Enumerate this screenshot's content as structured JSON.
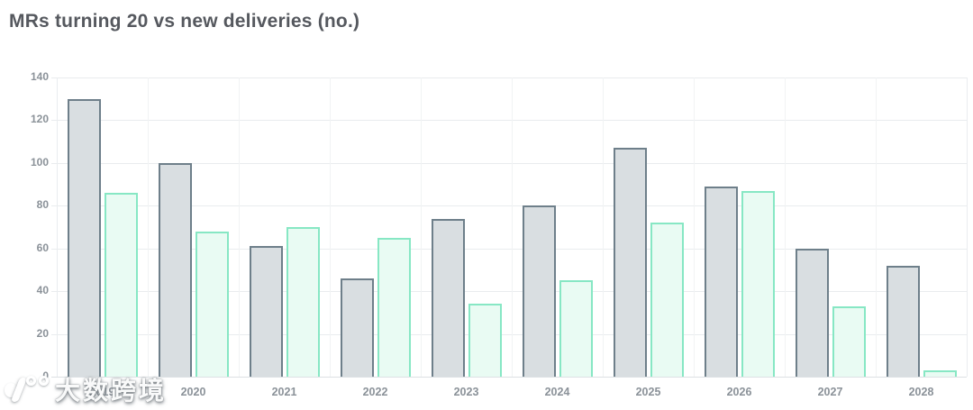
{
  "header": {
    "title": "MRs turning 20 vs new deliveries (no.)"
  },
  "chart_data": {
    "type": "bar",
    "title": "MRs turning 20 vs new deliveries (no.)",
    "categories": [
      "2019",
      "2020",
      "2021",
      "2022",
      "2023",
      "2024",
      "2025",
      "2026",
      "2027",
      "2028"
    ],
    "series": [
      {
        "name": "MRs turning 20",
        "fill": "#d9dee1",
        "border": "#6e7f8a",
        "values": [
          130,
          100,
          61,
          46,
          74,
          80,
          107,
          89,
          60,
          52
        ]
      },
      {
        "name": "New deliveries",
        "fill": "#e9fbf3",
        "border": "#87e7c4",
        "values": [
          86,
          68,
          70,
          65,
          34,
          45,
          72,
          87,
          33,
          3
        ]
      }
    ],
    "xlabel": "",
    "ylabel": "",
    "ylim": [
      0,
      140
    ],
    "yticks": [
      0,
      20,
      40,
      60,
      80,
      100,
      120,
      140
    ],
    "grid": true,
    "legend": "none",
    "colors": {
      "grid_h": "#e9ecee",
      "grid_v": "#f1f3f4",
      "axis_text": "#8b9299",
      "title_text": "#55585e"
    }
  },
  "watermark": {
    "logo": "100-logo",
    "text": "大数跨境"
  }
}
